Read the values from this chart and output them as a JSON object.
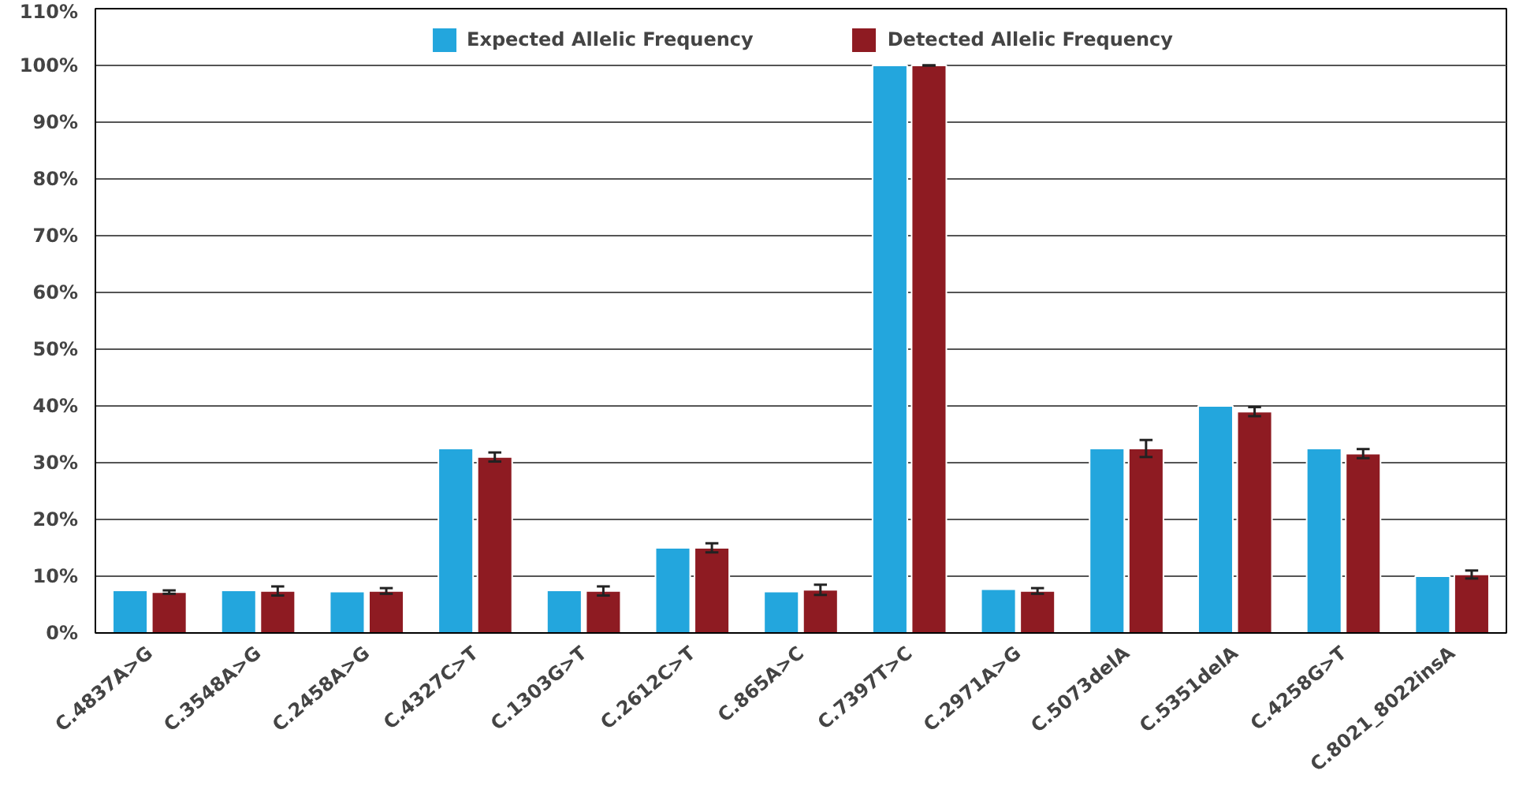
{
  "chart_data": {
    "type": "bar",
    "categories": [
      "C.4837A>G",
      "C.3548A>G",
      "C.2458A>G",
      "C.4327C>T",
      "C.1303G>T",
      "C.2612C>T",
      "C.865A>C",
      "C.7397T>C",
      "C.2971A>G",
      "C.5073delA",
      "C.5351delA",
      "C.4258G>T",
      "C.8021_8022insA"
    ],
    "series": [
      {
        "name": "Expected Allelic Frequency",
        "color": "#23a6dd",
        "values": [
          7.5,
          7.5,
          7.3,
          32.5,
          7.5,
          15,
          7.3,
          100,
          7.7,
          32.5,
          40,
          32.5,
          10
        ]
      },
      {
        "name": "Detected Allelic Frequency",
        "color": "#8e1b22",
        "values": [
          7.2,
          7.4,
          7.4,
          31,
          7.4,
          15,
          7.6,
          100,
          7.4,
          32.5,
          39,
          31.6,
          10.3
        ],
        "errors": [
          0.3,
          0.8,
          0.5,
          0.8,
          0.8,
          0.8,
          0.9,
          0,
          0.5,
          1.5,
          0.8,
          0.8,
          0.7
        ]
      }
    ],
    "ylim": [
      0,
      110
    ],
    "yticks": [
      {
        "value": 0,
        "label": "0%"
      },
      {
        "value": 10,
        "label": "10%"
      },
      {
        "value": 20,
        "label": "20%"
      },
      {
        "value": 30,
        "label": "30%"
      },
      {
        "value": 40,
        "label": "40%"
      },
      {
        "value": 50,
        "label": "50%"
      },
      {
        "value": 60,
        "label": "60%"
      },
      {
        "value": 70,
        "label": "70%"
      },
      {
        "value": 80,
        "label": "80%"
      },
      {
        "value": 90,
        "label": "90%"
      },
      {
        "value": 100,
        "label": "100%"
      },
      {
        "value": 110,
        "label": "110%"
      }
    ],
    "grid": "y",
    "legend": "top"
  }
}
